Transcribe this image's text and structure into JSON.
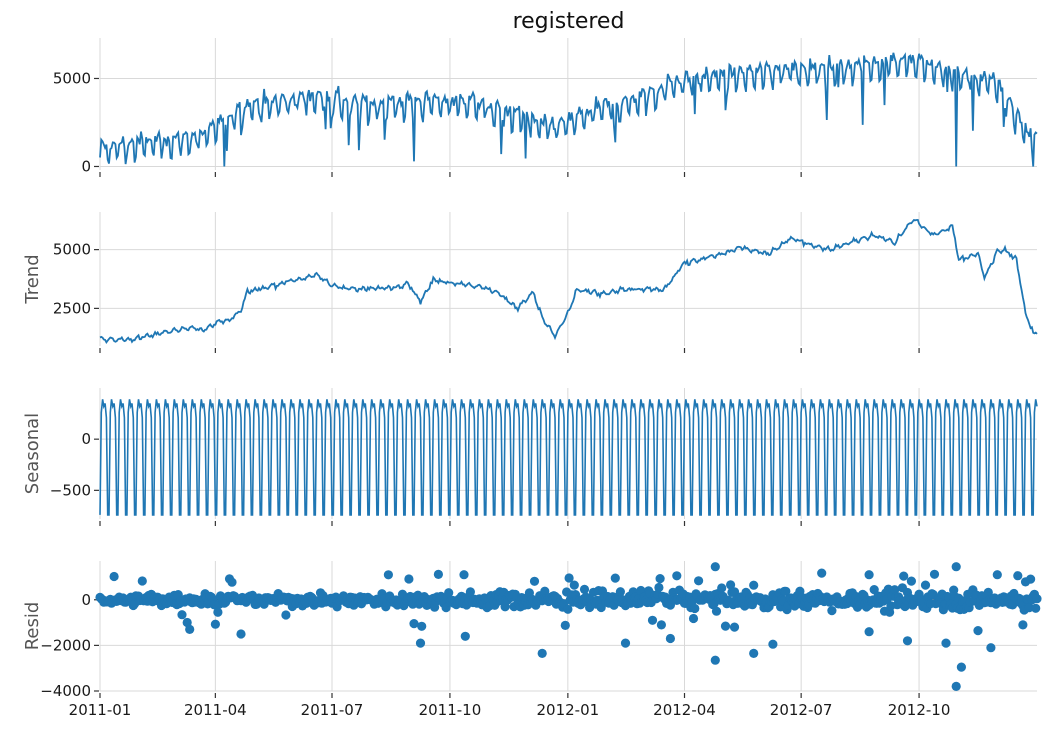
{
  "chart_data": [
    {
      "type": "line",
      "panel": "observed",
      "title": "registered",
      "ylabel": "",
      "ylim": [
        -200,
        7300
      ],
      "yticks": [
        0,
        5000
      ],
      "ytick_labels": [
        "0",
        "5000"
      ],
      "grid": true,
      "color": "#1f77b4",
      "trend_points": [
        [
          0,
          900
        ],
        [
          40,
          1300
        ],
        [
          80,
          1600
        ],
        [
          90,
          2100
        ],
        [
          110,
          3300
        ],
        [
          150,
          3700
        ],
        [
          170,
          3900
        ],
        [
          200,
          3400
        ],
        [
          230,
          3500
        ],
        [
          260,
          3600
        ],
        [
          290,
          3600
        ],
        [
          310,
          3100
        ],
        [
          330,
          2800
        ],
        [
          345,
          2100
        ],
        [
          365,
          2400
        ],
        [
          390,
          3200
        ],
        [
          420,
          3700
        ],
        [
          450,
          4800
        ],
        [
          480,
          5000
        ],
        [
          510,
          5200
        ],
        [
          540,
          5500
        ],
        [
          560,
          5400
        ],
        [
          600,
          5700
        ],
        [
          630,
          6000
        ],
        [
          660,
          5300
        ],
        [
          700,
          4600
        ],
        [
          725,
          1600
        ]
      ]
    },
    {
      "type": "line",
      "panel": "trend",
      "title": "",
      "ylabel": "Trend",
      "ylim": [
        900,
        6600
      ],
      "yticks": [
        2500,
        5000
      ],
      "ytick_labels": [
        "2500",
        "5000"
      ],
      "grid": true,
      "color": "#1f77b4",
      "trend_points": [
        [
          0,
          1200
        ],
        [
          20,
          1150
        ],
        [
          40,
          1350
        ],
        [
          55,
          1550
        ],
        [
          70,
          1700
        ],
        [
          80,
          1550
        ],
        [
          90,
          1900
        ],
        [
          100,
          1950
        ],
        [
          110,
          2400
        ],
        [
          115,
          3200
        ],
        [
          130,
          3400
        ],
        [
          150,
          3700
        ],
        [
          170,
          3900
        ],
        [
          180,
          3500
        ],
        [
          200,
          3300
        ],
        [
          230,
          3400
        ],
        [
          240,
          3600
        ],
        [
          250,
          2800
        ],
        [
          260,
          3700
        ],
        [
          290,
          3500
        ],
        [
          310,
          3200
        ],
        [
          325,
          2500
        ],
        [
          338,
          3200
        ],
        [
          345,
          2100
        ],
        [
          355,
          1300
        ],
        [
          366,
          2400
        ],
        [
          372,
          3300
        ],
        [
          390,
          3100
        ],
        [
          410,
          3300
        ],
        [
          440,
          3300
        ],
        [
          455,
          4400
        ],
        [
          470,
          4600
        ],
        [
          485,
          4800
        ],
        [
          500,
          5100
        ],
        [
          520,
          4800
        ],
        [
          540,
          5500
        ],
        [
          555,
          5200
        ],
        [
          570,
          5000
        ],
        [
          590,
          5400
        ],
        [
          605,
          5600
        ],
        [
          620,
          5300
        ],
        [
          635,
          6300
        ],
        [
          650,
          5600
        ],
        [
          665,
          6000
        ],
        [
          670,
          4600
        ],
        [
          685,
          4800
        ],
        [
          690,
          3800
        ],
        [
          700,
          4900
        ],
        [
          705,
          5000
        ],
        [
          715,
          4600
        ],
        [
          722,
          2300
        ],
        [
          728,
          1400
        ],
        [
          731,
          1500
        ]
      ]
    },
    {
      "type": "line",
      "panel": "seasonal",
      "title": "",
      "ylabel": "Seasonal",
      "ylim": [
        -780,
        500
      ],
      "yticks": [
        -500,
        0
      ],
      "ytick_labels": [
        "−500",
        "0"
      ],
      "grid": true,
      "period_days": 7,
      "weekly_pattern": [
        -740,
        260,
        390,
        320,
        350,
        210,
        -740
      ],
      "color": "#1f77b4"
    },
    {
      "type": "scatter",
      "panel": "resid",
      "title": "",
      "ylabel": "Resid",
      "ylim": [
        -4000,
        1700
      ],
      "yticks": [
        -4000,
        -2000,
        0
      ],
      "ytick_labels": [
        "−4000",
        "−2000",
        "0"
      ],
      "grid": true,
      "zero_line": true,
      "color": "#1f77b4",
      "outliers": [
        [
          70,
          -1300
        ],
        [
          110,
          -1500
        ],
        [
          250,
          -1900
        ],
        [
          285,
          -1600
        ],
        [
          345,
          -2350
        ],
        [
          410,
          -1900
        ],
        [
          445,
          -1700
        ],
        [
          480,
          -2650
        ],
        [
          495,
          -1200
        ],
        [
          510,
          -2350
        ],
        [
          525,
          -1950
        ],
        [
          600,
          -1400
        ],
        [
          630,
          -1800
        ],
        [
          660,
          -1900
        ],
        [
          668,
          -3800
        ],
        [
          672,
          -2950
        ],
        [
          685,
          -1350
        ],
        [
          695,
          -2100
        ],
        [
          720,
          -1100
        ],
        [
          480,
          1450
        ],
        [
          668,
          1450
        ],
        [
          600,
          1100
        ],
        [
          700,
          1100
        ],
        [
          450,
          1050
        ]
      ]
    }
  ],
  "x_axis": {
    "ticks": [
      {
        "day": 0,
        "label": "2011-01"
      },
      {
        "day": 90,
        "label": "2011-04"
      },
      {
        "day": 181,
        "label": "2011-07"
      },
      {
        "day": 273,
        "label": "2011-10"
      },
      {
        "day": 365,
        "label": "2012-01"
      },
      {
        "day": 456,
        "label": "2012-04"
      },
      {
        "day": 547,
        "label": "2012-07"
      },
      {
        "day": 639,
        "label": "2012-10"
      }
    ],
    "range_days": [
      0,
      731
    ]
  }
}
